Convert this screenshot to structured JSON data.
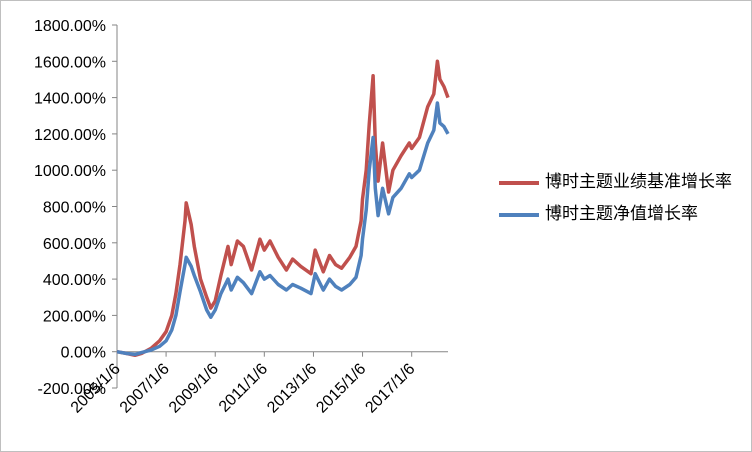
{
  "chart_data": {
    "type": "line",
    "title": "",
    "xlabel": "",
    "ylabel": "",
    "ylim": [
      -200,
      1800
    ],
    "y_ticks": [
      "1800.00%",
      "1600.00%",
      "1400.00%",
      "1200.00%",
      "1000.00%",
      "800.00%",
      "600.00%",
      "400.00%",
      "200.00%",
      "0.00%",
      "-200.00%"
    ],
    "y_tick_values": [
      1800,
      1600,
      1400,
      1200,
      1000,
      800,
      600,
      400,
      200,
      0,
      -200
    ],
    "x_ticks": [
      "2005/1/6",
      "2007/1/6",
      "2009/1/6",
      "2011/1/6",
      "2013/1/6",
      "2015/1/6",
      "2017/1/6"
    ],
    "x_tick_values": [
      "2005-01-06",
      "2007-01-06",
      "2009-01-06",
      "2011-01-06",
      "2013-01-06",
      "2015-01-06",
      "2017-01-06"
    ],
    "x_range": [
      "2005-01-06",
      "2018-06-30"
    ],
    "grid": false,
    "legend_position": "right",
    "series": [
      {
        "name": "博时主题业绩基准增长率",
        "color": "#c0504d",
        "points": [
          [
            "2005-01-06",
            0
          ],
          [
            "2005-06-01",
            -10
          ],
          [
            "2005-10-01",
            -20
          ],
          [
            "2006-01-06",
            -10
          ],
          [
            "2006-06-01",
            20
          ],
          [
            "2006-10-01",
            60
          ],
          [
            "2007-01-06",
            110
          ],
          [
            "2007-04-01",
            200
          ],
          [
            "2007-06-01",
            320
          ],
          [
            "2007-08-01",
            480
          ],
          [
            "2007-10-15",
            720
          ],
          [
            "2007-11-01",
            820
          ],
          [
            "2008-01-15",
            700
          ],
          [
            "2008-03-01",
            580
          ],
          [
            "2008-06-01",
            400
          ],
          [
            "2008-09-01",
            300
          ],
          [
            "2008-11-01",
            240
          ],
          [
            "2009-01-06",
            280
          ],
          [
            "2009-04-01",
            420
          ],
          [
            "2009-07-15",
            580
          ],
          [
            "2009-09-01",
            480
          ],
          [
            "2009-12-01",
            610
          ],
          [
            "2010-03-01",
            580
          ],
          [
            "2010-07-01",
            450
          ],
          [
            "2010-11-01",
            620
          ],
          [
            "2011-01-06",
            560
          ],
          [
            "2011-04-01",
            610
          ],
          [
            "2011-08-01",
            520
          ],
          [
            "2011-12-01",
            450
          ],
          [
            "2012-03-01",
            510
          ],
          [
            "2012-07-01",
            470
          ],
          [
            "2012-12-01",
            430
          ],
          [
            "2013-02-01",
            560
          ],
          [
            "2013-06-01",
            440
          ],
          [
            "2013-09-01",
            530
          ],
          [
            "2013-12-01",
            480
          ],
          [
            "2014-03-01",
            460
          ],
          [
            "2014-07-01",
            520
          ],
          [
            "2014-10-01",
            580
          ],
          [
            "2014-12-15",
            720
          ],
          [
            "2015-01-06",
            840
          ],
          [
            "2015-03-01",
            1000
          ],
          [
            "2015-04-15",
            1250
          ],
          [
            "2015-06-12",
            1520
          ],
          [
            "2015-07-15",
            1150
          ],
          [
            "2015-08-25",
            940
          ],
          [
            "2015-11-01",
            1150
          ],
          [
            "2016-01-28",
            880
          ],
          [
            "2016-04-01",
            1000
          ],
          [
            "2016-08-01",
            1080
          ],
          [
            "2016-12-01",
            1150
          ],
          [
            "2017-01-06",
            1120
          ],
          [
            "2017-05-01",
            1180
          ],
          [
            "2017-09-01",
            1350
          ],
          [
            "2017-12-01",
            1420
          ],
          [
            "2018-01-24",
            1600
          ],
          [
            "2018-03-01",
            1500
          ],
          [
            "2018-05-01",
            1460
          ],
          [
            "2018-06-30",
            1400
          ]
        ]
      },
      {
        "name": "博时主题净值增长率",
        "color": "#4f81bd",
        "points": [
          [
            "2005-01-06",
            0
          ],
          [
            "2005-06-01",
            -10
          ],
          [
            "2005-10-01",
            -15
          ],
          [
            "2006-01-06",
            -5
          ],
          [
            "2006-06-01",
            10
          ],
          [
            "2006-10-01",
            30
          ],
          [
            "2007-01-06",
            60
          ],
          [
            "2007-04-01",
            120
          ],
          [
            "2007-06-01",
            200
          ],
          [
            "2007-08-01",
            330
          ],
          [
            "2007-10-15",
            480
          ],
          [
            "2007-11-01",
            520
          ],
          [
            "2008-01-15",
            470
          ],
          [
            "2008-03-01",
            420
          ],
          [
            "2008-06-01",
            330
          ],
          [
            "2008-09-01",
            230
          ],
          [
            "2008-11-01",
            190
          ],
          [
            "2009-01-06",
            230
          ],
          [
            "2009-04-01",
            320
          ],
          [
            "2009-07-15",
            400
          ],
          [
            "2009-09-01",
            340
          ],
          [
            "2009-12-01",
            410
          ],
          [
            "2010-03-01",
            380
          ],
          [
            "2010-07-01",
            320
          ],
          [
            "2010-11-01",
            440
          ],
          [
            "2011-01-06",
            400
          ],
          [
            "2011-04-01",
            420
          ],
          [
            "2011-08-01",
            370
          ],
          [
            "2011-12-01",
            340
          ],
          [
            "2012-03-01",
            370
          ],
          [
            "2012-07-01",
            350
          ],
          [
            "2012-12-01",
            320
          ],
          [
            "2013-02-01",
            430
          ],
          [
            "2013-06-01",
            340
          ],
          [
            "2013-09-01",
            400
          ],
          [
            "2013-12-01",
            360
          ],
          [
            "2014-03-01",
            340
          ],
          [
            "2014-07-01",
            370
          ],
          [
            "2014-10-01",
            410
          ],
          [
            "2014-12-15",
            530
          ],
          [
            "2015-01-06",
            620
          ],
          [
            "2015-03-01",
            780
          ],
          [
            "2015-04-15",
            1000
          ],
          [
            "2015-06-12",
            1180
          ],
          [
            "2015-07-15",
            900
          ],
          [
            "2015-08-25",
            750
          ],
          [
            "2015-11-01",
            900
          ],
          [
            "2016-01-28",
            760
          ],
          [
            "2016-04-01",
            850
          ],
          [
            "2016-08-01",
            900
          ],
          [
            "2016-12-01",
            980
          ],
          [
            "2017-01-06",
            960
          ],
          [
            "2017-05-01",
            1000
          ],
          [
            "2017-09-01",
            1150
          ],
          [
            "2017-12-01",
            1220
          ],
          [
            "2018-01-24",
            1370
          ],
          [
            "2018-03-01",
            1260
          ],
          [
            "2018-05-01",
            1240
          ],
          [
            "2018-06-30",
            1200
          ]
        ]
      }
    ]
  }
}
